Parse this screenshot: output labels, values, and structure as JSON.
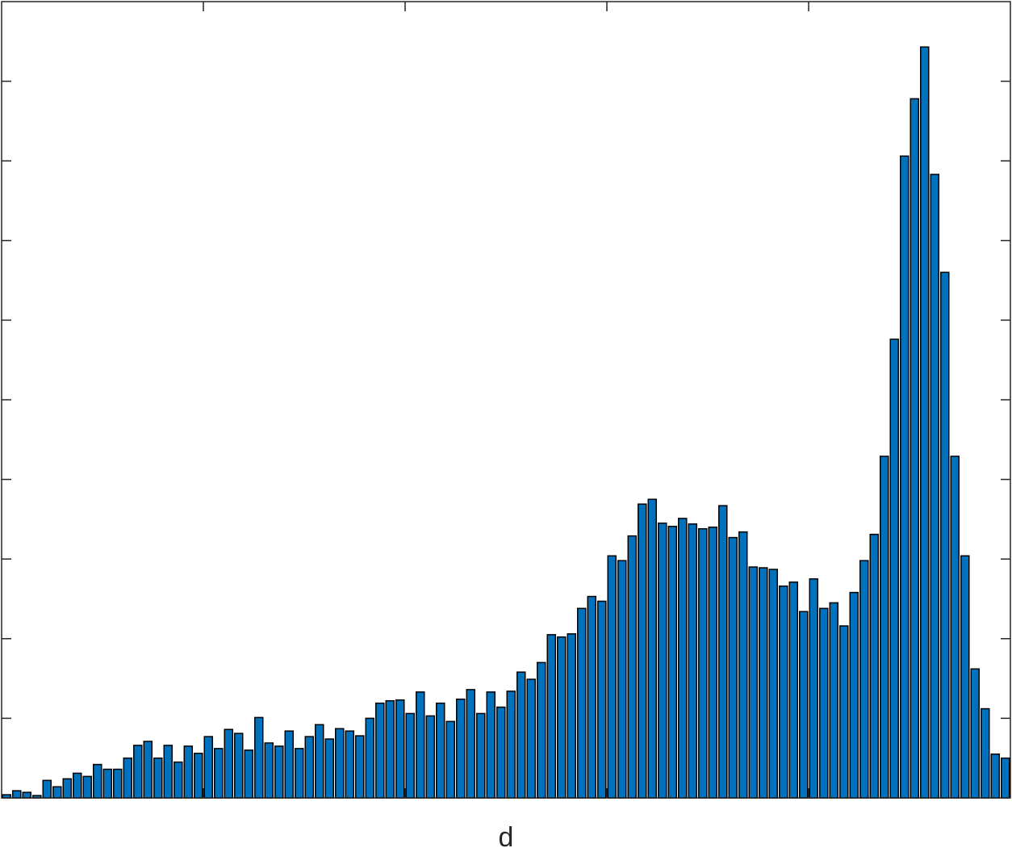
{
  "chart_data": {
    "type": "bar",
    "xlabel": "d",
    "ylabel": "",
    "title": "",
    "bar_color": "#0072BD",
    "edge_color": "#000000",
    "frame_color": "#262626",
    "grid": false,
    "xlim": [
      0,
      100
    ],
    "ylim": [
      0,
      100
    ],
    "x_ticks": [
      20,
      40,
      60,
      80
    ],
    "y_ticks": [
      10,
      20,
      30,
      40,
      50,
      60,
      70,
      80,
      90
    ],
    "x": [
      0.5,
      1.5,
      2.5,
      3.5,
      4.5,
      5.5,
      6.5,
      7.5,
      8.5,
      9.5,
      10.5,
      11.5,
      12.5,
      13.5,
      14.5,
      15.5,
      16.5,
      17.5,
      18.5,
      19.5,
      20.5,
      21.5,
      22.5,
      23.5,
      24.5,
      25.5,
      26.5,
      27.5,
      28.5,
      29.5,
      30.5,
      31.5,
      32.5,
      33.5,
      34.5,
      35.5,
      36.5,
      37.5,
      38.5,
      39.5,
      40.5,
      41.5,
      42.5,
      43.5,
      44.5,
      45.5,
      46.5,
      47.5,
      48.5,
      49.5,
      50.5,
      51.5,
      52.5,
      53.5,
      54.5,
      55.5,
      56.5,
      57.5,
      58.5,
      59.5,
      60.5,
      61.5,
      62.5,
      63.5,
      64.5,
      65.5,
      66.5,
      67.5,
      68.5,
      69.5,
      70.5,
      71.5,
      72.5,
      73.5,
      74.5,
      75.5,
      76.5,
      77.5,
      78.5,
      79.5,
      80.5,
      81.5,
      82.5,
      83.5,
      84.5,
      85.5,
      86.5,
      87.5,
      88.5,
      89.5,
      90.5,
      91.5,
      92.5,
      93.5,
      94.5,
      95.5,
      96.5,
      97.5,
      98.5,
      99.5
    ],
    "values": [
      0.4,
      0.9,
      0.7,
      0.3,
      2.2,
      1.4,
      2.4,
      3.1,
      2.7,
      4.2,
      3.6,
      3.6,
      5.0,
      6.6,
      7.1,
      5.0,
      6.6,
      4.5,
      6.5,
      5.6,
      7.7,
      6.2,
      8.6,
      8.1,
      6.0,
      10.1,
      6.9,
      6.5,
      8.4,
      6.2,
      7.7,
      9.2,
      7.4,
      8.7,
      8.4,
      7.8,
      10.0,
      11.9,
      12.2,
      12.3,
      10.6,
      13.3,
      10.3,
      11.9,
      9.6,
      12.4,
      13.6,
      10.6,
      13.3,
      11.4,
      13.4,
      15.8,
      14.9,
      17.0,
      20.5,
      20.2,
      20.6,
      23.8,
      25.3,
      24.7,
      30.4,
      29.8,
      32.9,
      36.9,
      37.5,
      34.5,
      34.1,
      35.1,
      34.4,
      33.8,
      34.0,
      36.7,
      32.7,
      33.4,
      29.0,
      28.9,
      28.7,
      26.6,
      27.1,
      23.4,
      27.5,
      23.8,
      24.5,
      21.6,
      25.8,
      29.8,
      33.1,
      42.9,
      57.6,
      80.6,
      87.8,
      94.3,
      78.3,
      66.0,
      42.9,
      30.4,
      16.2,
      11.2,
      5.5,
      5.0
    ]
  }
}
